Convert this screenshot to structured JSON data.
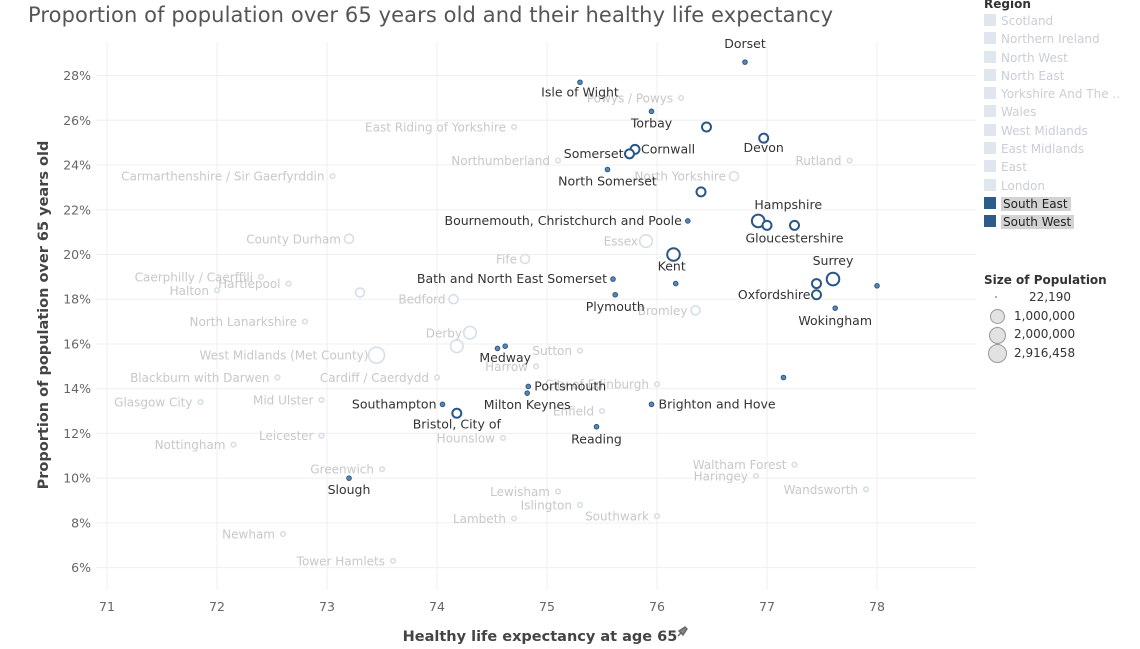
{
  "chart_data": {
    "type": "scatter",
    "title": "Proportion of population over 65 years old and their healthy life expectancy",
    "xlabel": "Healthy life expectancy at age 65",
    "xlabel_icon": "pin-icon",
    "ylabel": "Proportion of population over 65 years old",
    "xlim": [
      70.9,
      78.9
    ],
    "ylim": [
      5,
      29.5
    ],
    "x_ticks": [
      71,
      72,
      73,
      74,
      75,
      76,
      77,
      78
    ],
    "y_ticks": [
      6,
      8,
      10,
      12,
      14,
      16,
      18,
      20,
      22,
      24,
      26,
      28
    ],
    "y_tick_suffix": "%",
    "grid": true,
    "legend_placement": "right",
    "colors": {
      "highlight_fill": "#5b86b3",
      "highlight_stroke": "#2a5786",
      "dim_stroke": "#d6dfe9",
      "dim_label": "#c8c8c8",
      "label_dark": "#333333",
      "south_east": "#2b5c8a",
      "south_west": "#2e5b8a",
      "dim_swatch": "#dfe6ee"
    },
    "points_highlighted": [
      {
        "name": "Dorset",
        "x": 76.8,
        "y": 28.6,
        "size": 1,
        "label": "Dorset"
      },
      {
        "name": "Isle of Wight",
        "x": 75.3,
        "y": 27.7,
        "size": 1,
        "label": "Isle of Wight"
      },
      {
        "name": "Torbay",
        "x": 75.95,
        "y": 26.4,
        "size": 1,
        "label": "Torbay"
      },
      {
        "name": "Cornwall",
        "x": 75.8,
        "y": 24.7,
        "size": 2,
        "label": "Cornwall"
      },
      {
        "name": "Somerset",
        "x": 75.75,
        "y": 24.5,
        "size": 2,
        "label": "Somerset"
      },
      {
        "name": "Devon",
        "x": 76.97,
        "y": 25.2,
        "size": 2,
        "label": "Devon"
      },
      {
        "name": "North Somerset",
        "x": 75.55,
        "y": 23.8,
        "size": 1,
        "label": "North Somerset"
      },
      {
        "name": "Devon point 2",
        "x": 76.45,
        "y": 25.7,
        "size": 2,
        "label": ""
      },
      {
        "name": "Unlabeled 1",
        "x": 76.4,
        "y": 22.8,
        "size": 2,
        "label": ""
      },
      {
        "name": "Hampshire",
        "x": 76.92,
        "y": 21.5,
        "size": 3,
        "label": "Hampshire"
      },
      {
        "name": "Bournemouth, Christchurch and Poole",
        "x": 76.28,
        "y": 21.5,
        "size": 1,
        "label": "Bournemouth, Christchurch and Poole"
      },
      {
        "name": "Gloucestershire",
        "x": 77.25,
        "y": 21.3,
        "size": 2,
        "label": "Gloucestershire"
      },
      {
        "name": "Gloucestershire 2",
        "x": 77.0,
        "y": 21.3,
        "size": 2,
        "label": ""
      },
      {
        "name": "Unlabeled 2",
        "x": 76.15,
        "y": 20.0,
        "size": 3,
        "label": ""
      },
      {
        "name": "Surrey",
        "x": 77.6,
        "y": 18.9,
        "size": 3,
        "label": "Surrey"
      },
      {
        "name": "Kent",
        "x": 76.17,
        "y": 18.7,
        "size": 1,
        "label": "Kent"
      },
      {
        "name": "Bath and North East Somerset",
        "x": 75.6,
        "y": 18.9,
        "size": 1,
        "label": "Bath and North East Somerset"
      },
      {
        "name": "Oxfordshire",
        "x": 77.45,
        "y": 18.2,
        "size": 2,
        "label": "Oxfordshire"
      },
      {
        "name": "Unlabeled 3",
        "x": 77.45,
        "y": 18.7,
        "size": 2,
        "label": ""
      },
      {
        "name": "Unlabeled 4",
        "x": 78.0,
        "y": 18.6,
        "size": 1,
        "label": ""
      },
      {
        "name": "Plymouth",
        "x": 75.62,
        "y": 18.2,
        "size": 1,
        "label": "Plymouth"
      },
      {
        "name": "Wokingham",
        "x": 77.62,
        "y": 17.6,
        "size": 1,
        "label": "Wokingham"
      },
      {
        "name": "Medway",
        "x": 74.62,
        "y": 15.9,
        "size": 1,
        "label": "Medway"
      },
      {
        "name": "Medway 2",
        "x": 74.55,
        "y": 15.8,
        "size": 1,
        "label": ""
      },
      {
        "name": "Unlabeled 5",
        "x": 77.15,
        "y": 14.5,
        "size": 1,
        "label": ""
      },
      {
        "name": "Portsmouth",
        "x": 74.83,
        "y": 14.1,
        "size": 1,
        "label": "Portsmouth"
      },
      {
        "name": "Milton Keynes",
        "x": 74.82,
        "y": 13.8,
        "size": 1,
        "label": "Milton Keynes"
      },
      {
        "name": "Brighton and Hove",
        "x": 75.95,
        "y": 13.3,
        "size": 1,
        "label": "Brighton and Hove"
      },
      {
        "name": "Southampton",
        "x": 74.05,
        "y": 13.3,
        "size": 1,
        "label": "Southampton"
      },
      {
        "name": "Bristol, City of",
        "x": 74.18,
        "y": 12.9,
        "size": 2,
        "label": "Bristol, City of"
      },
      {
        "name": "Reading",
        "x": 75.45,
        "y": 12.3,
        "size": 1,
        "label": "Reading"
      },
      {
        "name": "Slough",
        "x": 73.2,
        "y": 10.0,
        "size": 1,
        "label": "Slough"
      }
    ],
    "points_dim": [
      {
        "name": "Powys / Powys",
        "x": 76.22,
        "y": 27.0,
        "size": 1,
        "label": "Powys / Powys"
      },
      {
        "name": "East Riding of Yorkshire",
        "x": 74.7,
        "y": 25.7,
        "size": 1,
        "label": "East Riding of Yorkshire"
      },
      {
        "name": "Northumberland",
        "x": 75.1,
        "y": 24.2,
        "size": 1,
        "label": "Northumberland"
      },
      {
        "name": "Rutland",
        "x": 77.75,
        "y": 24.2,
        "size": 1,
        "label": "Rutland"
      },
      {
        "name": "North Yorkshire",
        "x": 76.7,
        "y": 23.5,
        "size": 2,
        "label": "North Yorkshire"
      },
      {
        "name": "Carmarthenshire / Sir Gaerfyrddin",
        "x": 73.05,
        "y": 23.5,
        "size": 1,
        "label": "Carmarthenshire / Sir Gaerfyrddin"
      },
      {
        "name": "County Durham",
        "x": 73.2,
        "y": 20.7,
        "size": 2,
        "label": "County Durham"
      },
      {
        "name": "Fife",
        "x": 74.8,
        "y": 19.8,
        "size": 2,
        "label": "Fife"
      },
      {
        "name": "Essex",
        "x": 75.9,
        "y": 20.6,
        "size": 3,
        "label": "Essex"
      },
      {
        "name": "Caerphilly / Caerffili",
        "x": 72.4,
        "y": 19.0,
        "size": 1,
        "label": "Caerphilly / Caerffili"
      },
      {
        "name": "Hartlepool",
        "x": 72.65,
        "y": 18.7,
        "size": 1,
        "label": "Hartlepool"
      },
      {
        "name": "Halton",
        "x": 72.0,
        "y": 18.4,
        "size": 1,
        "label": "Halton"
      },
      {
        "name": "Unlabeled dim 1",
        "x": 73.3,
        "y": 18.3,
        "size": 2,
        "label": ""
      },
      {
        "name": "Bedford",
        "x": 74.15,
        "y": 18.0,
        "size": 2,
        "label": "Bedford"
      },
      {
        "name": "North Lanarkshire",
        "x": 72.8,
        "y": 17.0,
        "size": 1,
        "label": "North Lanarkshire"
      },
      {
        "name": "Bromley",
        "x": 76.35,
        "y": 17.5,
        "size": 2,
        "label": "Bromley"
      },
      {
        "name": "Derby",
        "x": 74.3,
        "y": 16.5,
        "size": 3,
        "label": "Derby"
      },
      {
        "name": "West Midlands (Met County)",
        "x": 73.45,
        "y": 15.5,
        "size": 4,
        "label": "West Midlands (Met County)"
      },
      {
        "name": "Sutton",
        "x": 75.3,
        "y": 15.7,
        "size": 1,
        "label": "Sutton"
      },
      {
        "name": "Unlabeled dim 2",
        "x": 74.18,
        "y": 15.9,
        "size": 3,
        "label": ""
      },
      {
        "name": "Harrow",
        "x": 74.9,
        "y": 15.0,
        "size": 1,
        "label": "Harrow"
      },
      {
        "name": "Blackburn with Darwen",
        "x": 72.55,
        "y": 14.5,
        "size": 1,
        "label": "Blackburn with Darwen"
      },
      {
        "name": "Cardiff / Caerdydd",
        "x": 74.0,
        "y": 14.5,
        "size": 1,
        "label": "Cardiff / Caerdydd"
      },
      {
        "name": "City of Edinburgh",
        "x": 76.0,
        "y": 14.2,
        "size": 1,
        "label": "City of Edinburgh"
      },
      {
        "name": "Mid Ulster",
        "x": 72.95,
        "y": 13.5,
        "size": 1,
        "label": "Mid Ulster"
      },
      {
        "name": "Glasgow City",
        "x": 71.85,
        "y": 13.4,
        "size": 1,
        "label": "Glasgow City"
      },
      {
        "name": "Enfield",
        "x": 75.5,
        "y": 13.0,
        "size": 1,
        "label": "Enfield"
      },
      {
        "name": "Hounslow",
        "x": 74.6,
        "y": 11.8,
        "size": 1,
        "label": "Hounslow"
      },
      {
        "name": "Nottingham",
        "x": 72.15,
        "y": 11.5,
        "size": 1,
        "label": "Nottingham"
      },
      {
        "name": "Leicester",
        "x": 72.95,
        "y": 11.9,
        "size": 1,
        "label": "Leicester"
      },
      {
        "name": "Waltham Forest",
        "x": 77.25,
        "y": 10.6,
        "size": 1,
        "label": "Waltham Forest"
      },
      {
        "name": "Greenwich",
        "x": 73.5,
        "y": 10.4,
        "size": 1,
        "label": "Greenwich"
      },
      {
        "name": "Haringey",
        "x": 76.9,
        "y": 10.1,
        "size": 1,
        "label": "Haringey"
      },
      {
        "name": "Lewisham",
        "x": 75.1,
        "y": 9.4,
        "size": 1,
        "label": "Lewisham"
      },
      {
        "name": "Wandsworth",
        "x": 77.9,
        "y": 9.5,
        "size": 1,
        "label": "Wandsworth"
      },
      {
        "name": "Islington",
        "x": 75.3,
        "y": 8.8,
        "size": 1,
        "label": "Islington"
      },
      {
        "name": "Lambeth",
        "x": 74.7,
        "y": 8.2,
        "size": 1,
        "label": "Lambeth"
      },
      {
        "name": "Southwark",
        "x": 76.0,
        "y": 8.3,
        "size": 1,
        "label": "Southwark"
      },
      {
        "name": "Newham",
        "x": 72.6,
        "y": 7.5,
        "size": 1,
        "label": "Newham"
      },
      {
        "name": "Tower Hamlets",
        "x": 73.6,
        "y": 6.3,
        "size": 1,
        "label": "Tower Hamlets"
      }
    ]
  },
  "legend": {
    "region_title": "Region",
    "regions": [
      {
        "name": "Scotland",
        "active": false
      },
      {
        "name": "Northern Ireland",
        "active": false
      },
      {
        "name": "North West",
        "active": false
      },
      {
        "name": "North East",
        "active": false
      },
      {
        "name": "Yorkshire And The ..",
        "active": false
      },
      {
        "name": "Wales",
        "active": false
      },
      {
        "name": "West Midlands",
        "active": false
      },
      {
        "name": "East Midlands",
        "active": false
      },
      {
        "name": "East",
        "active": false
      },
      {
        "name": "London",
        "active": false
      },
      {
        "name": "South East",
        "active": true
      },
      {
        "name": "South West",
        "active": true
      }
    ],
    "size_title": "Size of Population",
    "sizes": [
      {
        "label": "22,190",
        "level": 0
      },
      {
        "label": "1,000,000",
        "level": 1
      },
      {
        "label": "2,000,000",
        "level": 2
      },
      {
        "label": "2,916,458",
        "level": 3
      }
    ]
  }
}
